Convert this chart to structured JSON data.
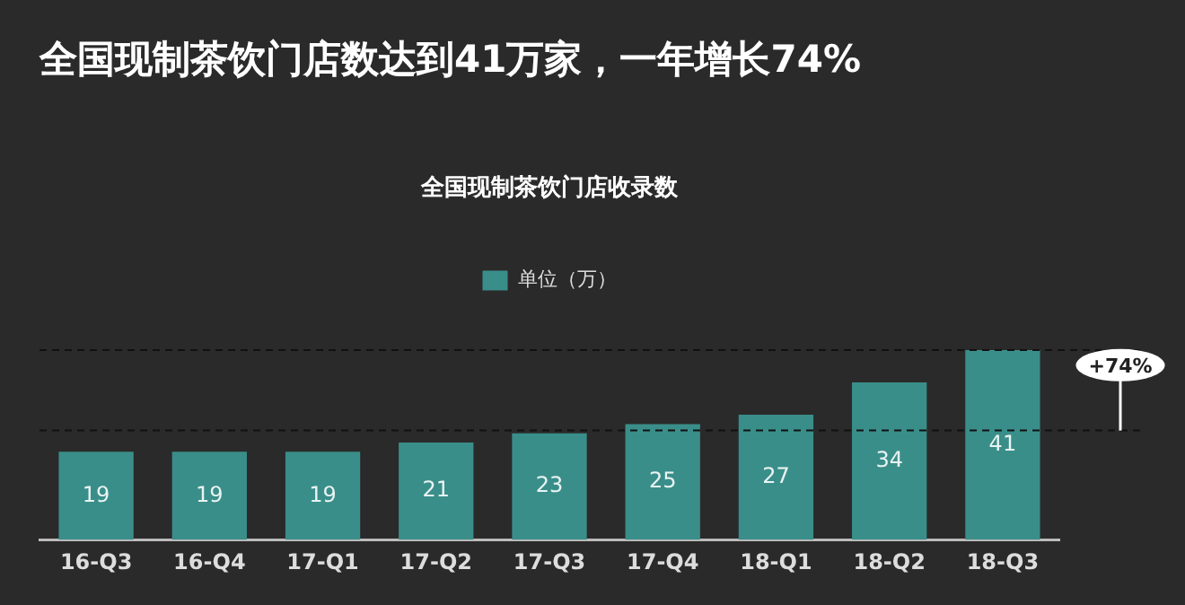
{
  "chart_data": {
    "type": "bar",
    "title": "全国现制茶饮门店数达到41万家，一年增长74%",
    "subtitle": "全国现制茶饮门店收录数",
    "categories": [
      "16-Q3",
      "16-Q4",
      "17-Q1",
      "17-Q2",
      "17-Q3",
      "17-Q4",
      "18-Q1",
      "18-Q2",
      "18-Q3"
    ],
    "series": [
      {
        "name": "单位（万）",
        "color": "#3a8e8a",
        "values": [
          19,
          19,
          19,
          21,
          23,
          25,
          27,
          34,
          41
        ]
      }
    ],
    "tick_labels": "x",
    "grid": false,
    "legend": "top",
    "data_labels": true,
    "ref_lines": [
      {
        "axis": "y",
        "value": 41,
        "line_style": "dashed"
      },
      {
        "axis": "y",
        "value": 23.6,
        "line_style": "dashed"
      }
    ],
    "annotations": [
      "+74%"
    ]
  }
}
